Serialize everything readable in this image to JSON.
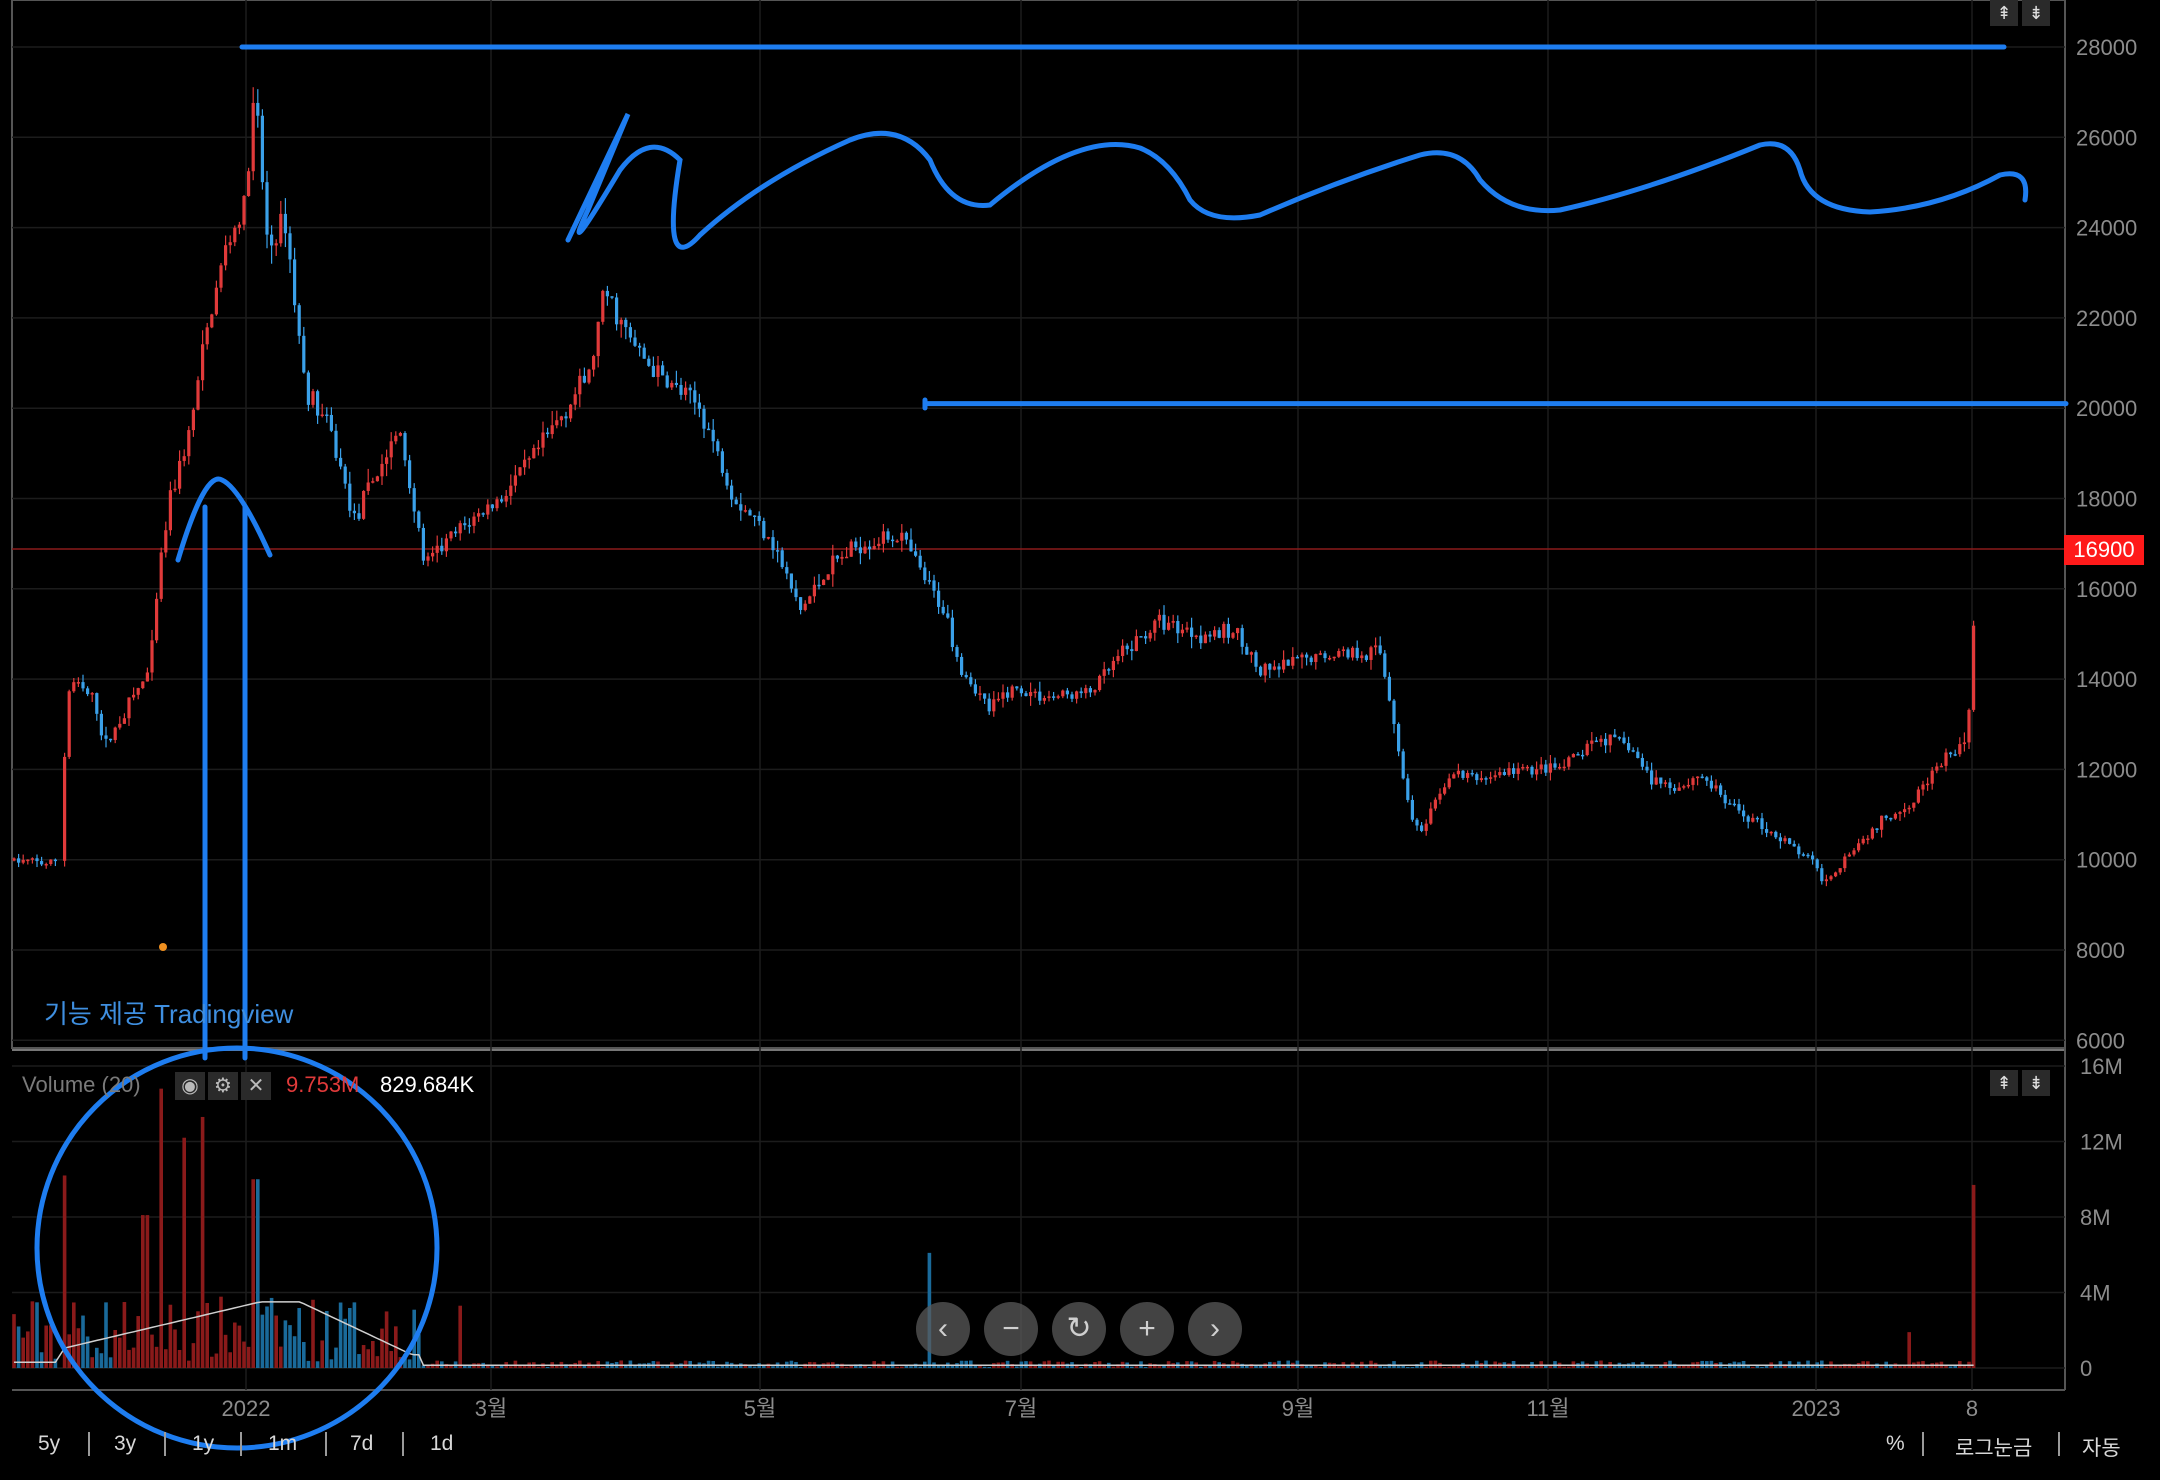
{
  "chart_data": {
    "type": "candlestick",
    "series_price": {
      "y_ticks": [
        "28000",
        "26000",
        "24000",
        "22000",
        "20000",
        "18000",
        "16000",
        "14000",
        "12000",
        "10000",
        "8000",
        "6000"
      ],
      "ylim": [
        6000,
        28000
      ],
      "last_price": "16900",
      "drawn_lines": [
        {
          "name": "resistance-high",
          "y": 28000
        },
        {
          "name": "resistance-mid",
          "y": 20100
        }
      ]
    },
    "series_volume": {
      "title": "Volume (20)",
      "value_1": "9.753M",
      "value_2": "829.684K",
      "y_ticks": [
        "16M",
        "12M",
        "8M",
        "4M",
        "0"
      ],
      "ylim": [
        0,
        16
      ]
    },
    "x_ticks": [
      "2022",
      "3월",
      "5월",
      "7월",
      "9월",
      "11월",
      "2023",
      "8"
    ],
    "colors": {
      "up": "#e03a3a",
      "down": "#3aa0e8",
      "annotation": "#1e7df0"
    }
  },
  "timeframes": [
    "5y",
    "3y",
    "1y",
    "1m",
    "7d",
    "1d"
  ],
  "right_options": [
    "%",
    "로그눈금",
    "자동"
  ],
  "credit": "기능 제공 Tradingview",
  "nav_icons": [
    "chevron-left-icon",
    "minus-icon",
    "reset-icon",
    "plus-icon",
    "chevron-right-icon"
  ]
}
